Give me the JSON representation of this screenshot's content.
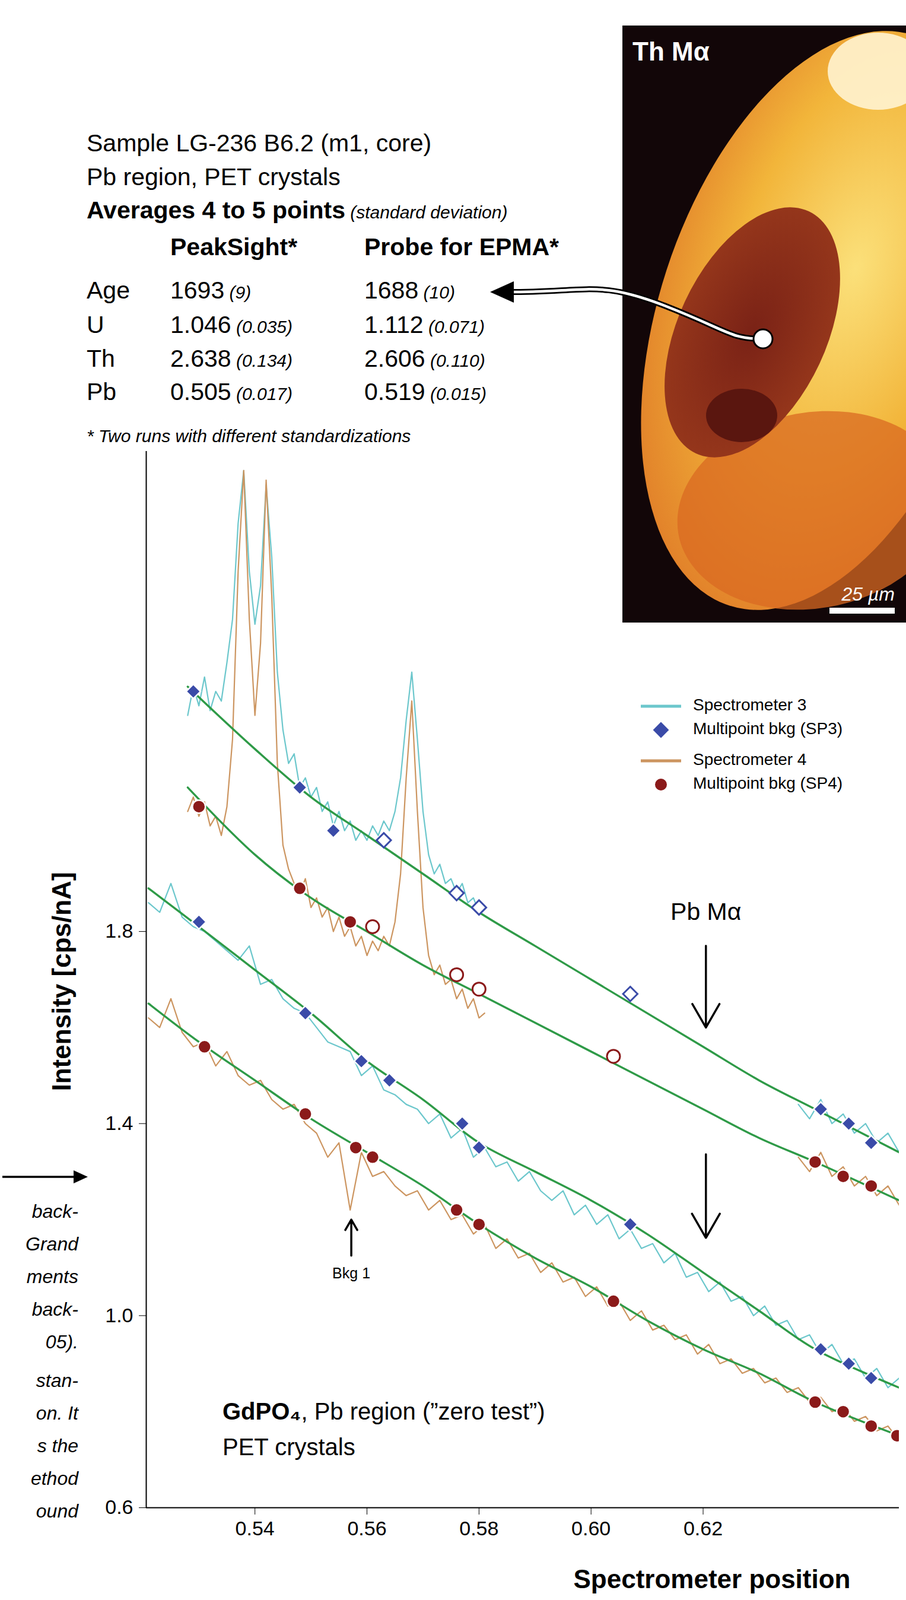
{
  "chart_data": {
    "type": "line",
    "x_label": "Spectrometer position",
    "y_label": "Intensity [cps/nA]",
    "xlim": [
      0.5206,
      0.655
    ],
    "ylim": [
      0.6,
      2.8
    ],
    "xticks": [
      0.54,
      0.56,
      0.58,
      {
        "value": 0.6,
        "label": "0.60"
      },
      0.62
    ],
    "yticks": [
      0.6,
      {
        "value": 1,
        "label": "1.0"
      },
      1.4,
      1.8
    ],
    "grid": false,
    "legend": "top-right",
    "series": [
      {
        "name": "Spectrometer 3",
        "type": "line",
        "line_style": "solid",
        "color": "#6cc7cc",
        "x": [
          0.528,
          0.529,
          0.53,
          0.531,
          0.532,
          0.533,
          0.534,
          0.535,
          0.536,
          0.537,
          0.538,
          0.539,
          0.54,
          0.541,
          0.542,
          0.543,
          0.544,
          0.545,
          0.546,
          0.547,
          0.548,
          0.549,
          0.55,
          0.551,
          0.552,
          0.553,
          0.554,
          0.555,
          0.556,
          0.557,
          0.558,
          0.559,
          0.56,
          0.561,
          0.562,
          0.563,
          0.564,
          0.565,
          0.566,
          0.567,
          0.568,
          0.569,
          0.57,
          0.571,
          0.572,
          0.573,
          0.574,
          0.575,
          0.576,
          0.577,
          0.578,
          0.579,
          0.58,
          0.581,
          null,
          0.637,
          0.639,
          0.641,
          0.643,
          0.645,
          0.647,
          0.649,
          0.651,
          0.653,
          0.655,
          null,
          0.521,
          0.523,
          0.525,
          0.527,
          0.529,
          0.531,
          0.533,
          0.535,
          0.537,
          0.539,
          0.541,
          0.543,
          0.545,
          0.547,
          0.549,
          0.551,
          0.553,
          0.555,
          0.557,
          0.559,
          0.561,
          0.563,
          0.565,
          0.567,
          0.569,
          0.571,
          0.573,
          0.575,
          0.577,
          0.579,
          0.581,
          0.583,
          0.585,
          0.587,
          0.589,
          0.591,
          0.593,
          0.595,
          0.597,
          0.599,
          0.601,
          0.603,
          0.605,
          0.607,
          0.609,
          0.611,
          0.613,
          0.615,
          0.617,
          0.619,
          0.621,
          0.623,
          0.625,
          0.627,
          0.629,
          0.631,
          0.633,
          0.635,
          0.637,
          0.639,
          0.641,
          0.643,
          0.645,
          0.647,
          0.649,
          0.651,
          0.653,
          0.655
        ],
        "values": [
          2.25,
          2.31,
          2.27,
          2.33,
          2.26,
          2.3,
          2.28,
          2.36,
          2.45,
          2.65,
          2.76,
          2.55,
          2.44,
          2.52,
          2.73,
          2.58,
          2.34,
          2.22,
          2.15,
          2.17,
          2.1,
          2.12,
          2.08,
          2.1,
          2.05,
          2.07,
          2.02,
          2.05,
          2.01,
          2.03,
          1.99,
          2.01,
          1.99,
          2.02,
          2.0,
          2.03,
          2.01,
          2.05,
          2.12,
          2.24,
          2.34,
          2.2,
          2.05,
          1.96,
          1.92,
          1.94,
          1.9,
          1.91,
          1.88,
          1.9,
          1.86,
          1.87,
          1.84,
          1.85,
          null,
          1.44,
          1.41,
          1.45,
          1.4,
          1.42,
          1.38,
          1.4,
          1.36,
          1.38,
          1.34,
          null,
          1.86,
          1.84,
          1.9,
          1.83,
          1.81,
          1.8,
          1.78,
          1.76,
          1.74,
          1.77,
          1.69,
          1.7,
          1.66,
          1.64,
          1.63,
          1.6,
          1.57,
          1.56,
          1.55,
          1.5,
          1.52,
          1.47,
          1.46,
          1.44,
          1.43,
          1.4,
          1.42,
          1.37,
          1.39,
          1.33,
          1.35,
          1.31,
          1.32,
          1.28,
          1.3,
          1.26,
          1.24,
          1.26,
          1.21,
          1.23,
          1.19,
          1.21,
          1.16,
          1.18,
          1.14,
          1.15,
          1.11,
          1.13,
          1.08,
          1.09,
          1.05,
          1.07,
          1.03,
          1.04,
          1.0,
          1.02,
          0.98,
          0.99,
          0.95,
          0.96,
          0.92,
          0.94,
          0.9,
          0.91,
          0.87,
          0.89,
          0.85,
          0.87
        ]
      },
      {
        "name": "Multipoint bkg (SP3)",
        "type": "scatter",
        "marker": "diamond",
        "color": "#3a4ba8",
        "x": [
          0.529,
          0.548,
          0.554,
          0.641,
          0.646,
          0.65,
          0.53,
          0.549,
          0.559,
          0.564,
          0.577,
          0.58,
          0.607,
          0.641,
          0.646,
          0.65
        ],
        "values": [
          2.3,
          2.1,
          2.01,
          1.43,
          1.4,
          1.36,
          1.82,
          1.63,
          1.53,
          1.49,
          1.4,
          1.35,
          1.19,
          0.93,
          0.9,
          0.87
        ]
      },
      {
        "name": "Spectrometer 4",
        "type": "line",
        "line_style": "solid",
        "color": "#cc9560",
        "x": [
          0.528,
          0.529,
          0.53,
          0.531,
          0.532,
          0.533,
          0.534,
          0.535,
          0.536,
          0.537,
          0.538,
          0.539,
          0.54,
          0.541,
          0.542,
          0.543,
          0.544,
          0.545,
          0.546,
          0.547,
          0.548,
          0.549,
          0.55,
          0.551,
          0.552,
          0.553,
          0.554,
          0.555,
          0.556,
          0.557,
          0.558,
          0.559,
          0.56,
          0.561,
          0.562,
          0.563,
          0.564,
          0.565,
          0.566,
          0.567,
          0.568,
          0.569,
          0.57,
          0.571,
          0.572,
          0.573,
          0.574,
          0.575,
          0.576,
          0.577,
          0.578,
          0.579,
          0.58,
          0.581,
          null,
          0.637,
          0.639,
          0.641,
          0.643,
          0.645,
          0.647,
          0.649,
          0.651,
          0.653,
          0.655,
          null,
          0.521,
          0.523,
          0.525,
          0.527,
          0.529,
          0.531,
          0.533,
          0.535,
          0.537,
          0.539,
          0.541,
          0.543,
          0.545,
          0.547,
          0.549,
          0.551,
          0.553,
          0.555,
          0.557,
          0.559,
          0.561,
          0.563,
          0.565,
          0.567,
          0.569,
          0.571,
          0.573,
          0.575,
          0.577,
          0.579,
          0.581,
          0.583,
          0.585,
          0.587,
          0.589,
          0.591,
          0.593,
          0.595,
          0.597,
          0.599,
          0.601,
          0.603,
          0.605,
          0.607,
          0.609,
          0.611,
          0.613,
          0.615,
          0.617,
          0.619,
          0.621,
          0.623,
          0.625,
          0.627,
          0.629,
          0.631,
          0.633,
          0.635,
          0.637,
          0.639,
          0.641,
          0.643,
          0.645,
          0.647,
          0.649,
          0.651,
          0.653,
          0.655
        ],
        "values": [
          2.05,
          2.08,
          2.04,
          2.07,
          2.02,
          2.04,
          2.0,
          2.06,
          2.2,
          2.55,
          2.76,
          2.45,
          2.25,
          2.4,
          2.74,
          2.5,
          2.15,
          1.98,
          1.93,
          1.9,
          1.88,
          1.91,
          1.85,
          1.87,
          1.83,
          1.85,
          1.8,
          1.83,
          1.79,
          1.81,
          1.77,
          1.79,
          1.75,
          1.78,
          1.76,
          1.79,
          1.77,
          1.82,
          1.92,
          2.12,
          2.28,
          2.05,
          1.85,
          1.75,
          1.71,
          1.73,
          1.69,
          1.7,
          1.66,
          1.68,
          1.64,
          1.66,
          1.62,
          1.63,
          null,
          1.33,
          1.3,
          1.34,
          1.29,
          1.31,
          1.27,
          1.29,
          1.25,
          1.27,
          1.23,
          null,
          1.62,
          1.6,
          1.66,
          1.59,
          1.56,
          1.57,
          1.52,
          1.55,
          1.5,
          1.48,
          1.49,
          1.45,
          1.43,
          1.44,
          1.4,
          1.38,
          1.33,
          1.36,
          1.22,
          1.34,
          1.29,
          1.3,
          1.27,
          1.25,
          1.26,
          1.22,
          1.24,
          1.2,
          1.21,
          1.17,
          1.19,
          1.14,
          1.16,
          1.12,
          1.13,
          1.09,
          1.11,
          1.07,
          1.08,
          1.04,
          1.06,
          1.02,
          1.03,
          0.99,
          1.01,
          0.97,
          0.98,
          0.95,
          0.96,
          0.92,
          0.94,
          0.9,
          0.91,
          0.88,
          0.89,
          0.86,
          0.87,
          0.84,
          0.85,
          0.82,
          0.83,
          0.8,
          0.81,
          0.78,
          0.79,
          0.76,
          0.77,
          0.74
        ]
      },
      {
        "name": "Multipoint bkg (SP4)",
        "type": "scatter",
        "marker": "circle",
        "color": "#8b1a1a",
        "x": [
          0.53,
          0.548,
          0.557,
          0.64,
          0.645,
          0.65,
          0.531,
          0.549,
          0.558,
          0.561,
          0.576,
          0.58,
          0.604,
          0.64,
          0.645,
          0.65,
          0.6546
        ],
        "values": [
          2.06,
          1.89,
          1.82,
          1.32,
          1.29,
          1.27,
          1.56,
          1.42,
          1.35,
          1.33,
          1.22,
          1.19,
          1.03,
          0.82,
          0.8,
          0.77,
          0.75
        ]
      },
      {
        "type": "scatter",
        "marker": "diamond-open",
        "color": "#3a4ba8",
        "x": [
          0.563,
          0.576,
          0.58,
          0.607
        ],
        "values": [
          1.99,
          1.88,
          1.85,
          1.67
        ]
      },
      {
        "type": "scatter",
        "marker": "circle-open",
        "color": "#8b1a1a",
        "x": [
          0.561,
          0.576,
          0.58,
          0.604
        ],
        "values": [
          1.81,
          1.71,
          1.68,
          1.54
        ]
      },
      {
        "type": "line",
        "line_style": "smooth",
        "color": "#2e9a47",
        "x": [
          0.528,
          0.54,
          0.55,
          0.56,
          0.57,
          0.58,
          0.59,
          0.6,
          0.61,
          0.62,
          0.63,
          0.64,
          0.655,
          null,
          0.528,
          0.54,
          0.55,
          0.56,
          0.57,
          0.58,
          0.59,
          0.6,
          0.61,
          0.62,
          0.63,
          0.64,
          0.655,
          null,
          0.521,
          0.53,
          0.54,
          0.55,
          0.56,
          0.57,
          0.58,
          0.59,
          0.6,
          0.61,
          0.62,
          0.63,
          0.64,
          0.655,
          null,
          0.521,
          0.53,
          0.54,
          0.55,
          0.56,
          0.57,
          0.58,
          0.59,
          0.6,
          0.61,
          0.62,
          0.63,
          0.64,
          0.655
        ],
        "values": [
          2.31,
          2.18,
          2.08,
          2.0,
          1.92,
          1.84,
          1.77,
          1.7,
          1.63,
          1.56,
          1.49,
          1.43,
          1.34,
          null,
          2.1,
          1.96,
          1.87,
          1.8,
          1.73,
          1.67,
          1.61,
          1.55,
          1.49,
          1.43,
          1.37,
          1.32,
          1.24,
          null,
          1.89,
          1.81,
          1.72,
          1.63,
          1.53,
          1.45,
          1.36,
          1.3,
          1.24,
          1.17,
          1.09,
          1.01,
          0.93,
          0.85,
          null,
          1.65,
          1.57,
          1.49,
          1.41,
          1.34,
          1.27,
          1.19,
          1.12,
          1.06,
          0.99,
          0.93,
          0.88,
          0.82,
          0.75
        ]
      }
    ],
    "annotations": [
      {
        "text": "Pb Mα",
        "x": 0.6205,
        "y": 1.84
      },
      {
        "text": "Bkg 1",
        "x": 0.5572,
        "y": 1.087
      }
    ],
    "arrows": [
      {
        "x": 0.6205,
        "y1": 1.77,
        "y2": 1.6
      },
      {
        "x": 0.6205,
        "y1": 1.336,
        "y2": 1.162
      },
      {
        "x": 0.5572,
        "y1": 1.125,
        "y2": 1.2
      }
    ],
    "sample_label": {
      "bold": "GdPO₄",
      "text": ", Pb region (”zero test”)",
      "line2": "PET crystals"
    }
  },
  "table": {
    "lines": [
      "Sample LG-236 B6.2 (m1, core)",
      "Pb region, PET crystals"
    ],
    "heading": "Averages 4 to 5 points",
    "heading_note": "(standard deviation)",
    "columns": [
      "PeakSight*",
      "Probe for EPMA*"
    ],
    "rows": [
      {
        "label": "Age",
        "cells": [
          [
            "1693",
            "(9)"
          ],
          [
            "1688",
            "(10)"
          ]
        ]
      },
      {
        "label": "U",
        "cells": [
          [
            "1.046",
            "(0.035)"
          ],
          [
            "1.112",
            "(0.071)"
          ]
        ]
      },
      {
        "label": "Th",
        "cells": [
          [
            "2.638",
            "(0.134)"
          ],
          [
            "2.606",
            "(0.110)"
          ]
        ]
      },
      {
        "label": "Pb",
        "cells": [
          [
            "0.505",
            "(0.017)"
          ],
          [
            "0.519",
            "(0.015)"
          ]
        ]
      }
    ],
    "footnote": "* Two runs with different standardizations"
  },
  "image": {
    "label": "Th Mα",
    "scale_bar": "25 µm"
  },
  "caption_fragments": [
    [
      "back-",
      "Grand",
      "ments",
      "back-",
      "05)."
    ],
    [
      "stan-",
      "on. It",
      "s the",
      "ethod",
      "ound"
    ]
  ]
}
